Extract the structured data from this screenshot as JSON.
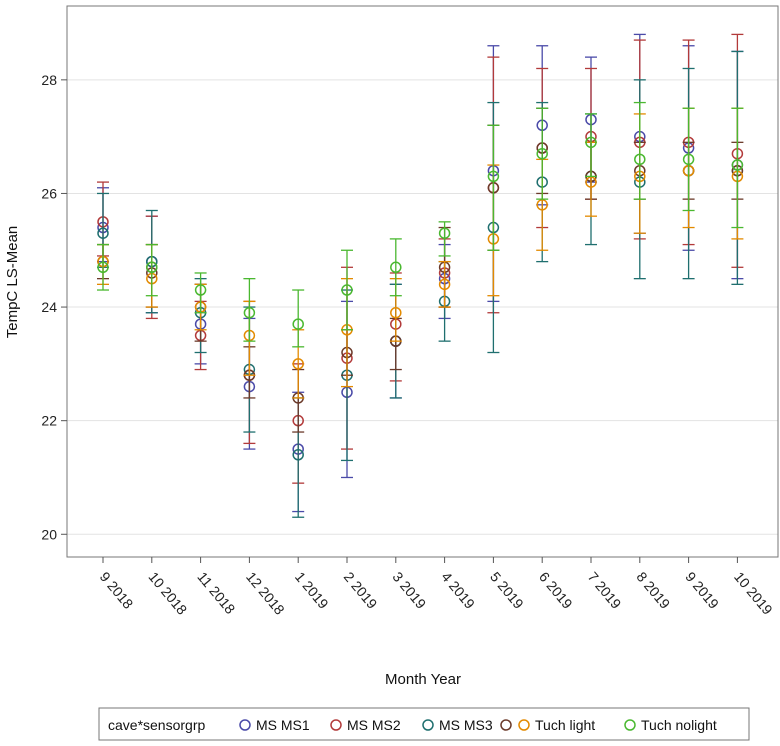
{
  "chart_data": {
    "type": "scatter",
    "xlabel": "Month Year",
    "ylabel": "TempC LS-Mean",
    "ylim": [
      19.6,
      29.3
    ],
    "yticks": [
      20,
      22,
      24,
      26,
      28
    ],
    "grid": "horizontal",
    "categories": [
      "9 2018",
      "10 2018",
      "11 2018",
      "12 2018",
      "1 2019",
      "2 2019",
      "3 2019",
      "4 2019",
      "5 2019",
      "6 2019",
      "7 2019",
      "8 2019",
      "9 2019",
      "10 2019"
    ],
    "legend": {
      "title": "cave*sensorgrp",
      "placement": "bottom"
    },
    "series": [
      {
        "name": "MS MS1",
        "color": "#4a4aa8",
        "values": [
          25.4,
          24.8,
          23.7,
          22.6,
          21.5,
          22.5,
          23.4,
          24.5,
          26.4,
          27.2,
          27.3,
          27.0,
          26.8,
          26.5
        ],
        "lower": [
          24.8,
          23.9,
          23.0,
          21.5,
          20.4,
          21.0,
          22.4,
          23.8,
          24.1,
          25.8,
          26.2,
          25.3,
          25.0,
          24.5
        ],
        "upper": [
          26.1,
          25.6,
          24.4,
          23.8,
          22.5,
          24.1,
          24.4,
          25.1,
          28.6,
          28.6,
          28.4,
          28.8,
          28.6,
          28.5
        ]
      },
      {
        "name": "MS MS2",
        "color": "#b23a3a",
        "values": [
          25.5,
          24.7,
          23.5,
          22.8,
          22.0,
          23.1,
          23.7,
          24.6,
          26.1,
          26.8,
          27.0,
          26.9,
          26.9,
          26.7
        ],
        "lower": [
          24.9,
          23.8,
          22.9,
          21.6,
          20.9,
          21.5,
          22.7,
          24.0,
          23.9,
          25.4,
          25.9,
          25.2,
          25.1,
          24.7
        ],
        "upper": [
          26.2,
          25.6,
          24.1,
          24.1,
          23.0,
          24.7,
          24.6,
          25.2,
          28.4,
          28.2,
          28.2,
          28.7,
          28.7,
          28.8
        ]
      },
      {
        "name": "MS MS3",
        "color": "#1f6f6f",
        "values": [
          25.3,
          24.8,
          23.9,
          22.9,
          21.4,
          22.8,
          23.4,
          24.1,
          25.4,
          26.2,
          26.3,
          26.2,
          26.4,
          26.4
        ],
        "lower": [
          24.7,
          23.9,
          23.2,
          21.8,
          20.3,
          21.3,
          22.4,
          23.4,
          23.2,
          24.8,
          25.1,
          24.5,
          24.5,
          24.4
        ],
        "upper": [
          26.0,
          25.7,
          24.5,
          24.0,
          22.4,
          24.3,
          24.4,
          24.8,
          27.6,
          27.6,
          27.4,
          28.0,
          28.2,
          28.5
        ]
      },
      {
        "name": "",
        "color": "#6b3a2a",
        "values": [
          24.8,
          24.6,
          24.0,
          22.8,
          22.4,
          23.2,
          23.4,
          24.7,
          26.1,
          26.8,
          26.3,
          26.4,
          26.4,
          26.4
        ],
        "lower": [
          24.5,
          24.0,
          23.4,
          22.4,
          21.8,
          22.8,
          22.9,
          24.0,
          25.0,
          26.0,
          25.9,
          25.9,
          25.9,
          25.9
        ],
        "upper": [
          25.1,
          25.1,
          24.4,
          23.3,
          22.9,
          23.6,
          23.8,
          25.4,
          27.2,
          27.5,
          26.9,
          26.9,
          26.9,
          26.9
        ]
      },
      {
        "name": "Tuch light",
        "color": "#e38a00",
        "values": [
          24.8,
          24.5,
          24.0,
          23.5,
          23.0,
          23.6,
          23.9,
          24.4,
          25.2,
          25.8,
          26.2,
          26.3,
          26.4,
          26.3
        ],
        "lower": [
          24.4,
          24.0,
          23.6,
          22.8,
          22.4,
          22.6,
          23.4,
          24.0,
          24.2,
          25.0,
          25.6,
          25.3,
          25.4,
          25.2
        ],
        "upper": [
          25.1,
          25.1,
          24.4,
          24.1,
          23.6,
          24.5,
          24.5,
          24.8,
          26.5,
          26.6,
          26.9,
          27.4,
          27.5,
          27.5
        ]
      },
      {
        "name": "Tuch nolight",
        "color": "#4ab830",
        "values": [
          24.7,
          24.7,
          24.3,
          23.9,
          23.7,
          24.3,
          24.7,
          25.3,
          26.3,
          26.7,
          26.9,
          26.6,
          26.6,
          26.5
        ],
        "lower": [
          24.3,
          24.2,
          23.9,
          23.4,
          23.3,
          23.6,
          24.2,
          24.9,
          25.0,
          25.9,
          26.3,
          25.9,
          25.7,
          25.4
        ],
        "upper": [
          25.1,
          25.1,
          24.6,
          24.5,
          24.3,
          25.0,
          25.2,
          25.5,
          27.2,
          27.5,
          27.4,
          27.6,
          27.5,
          27.5
        ]
      }
    ]
  }
}
